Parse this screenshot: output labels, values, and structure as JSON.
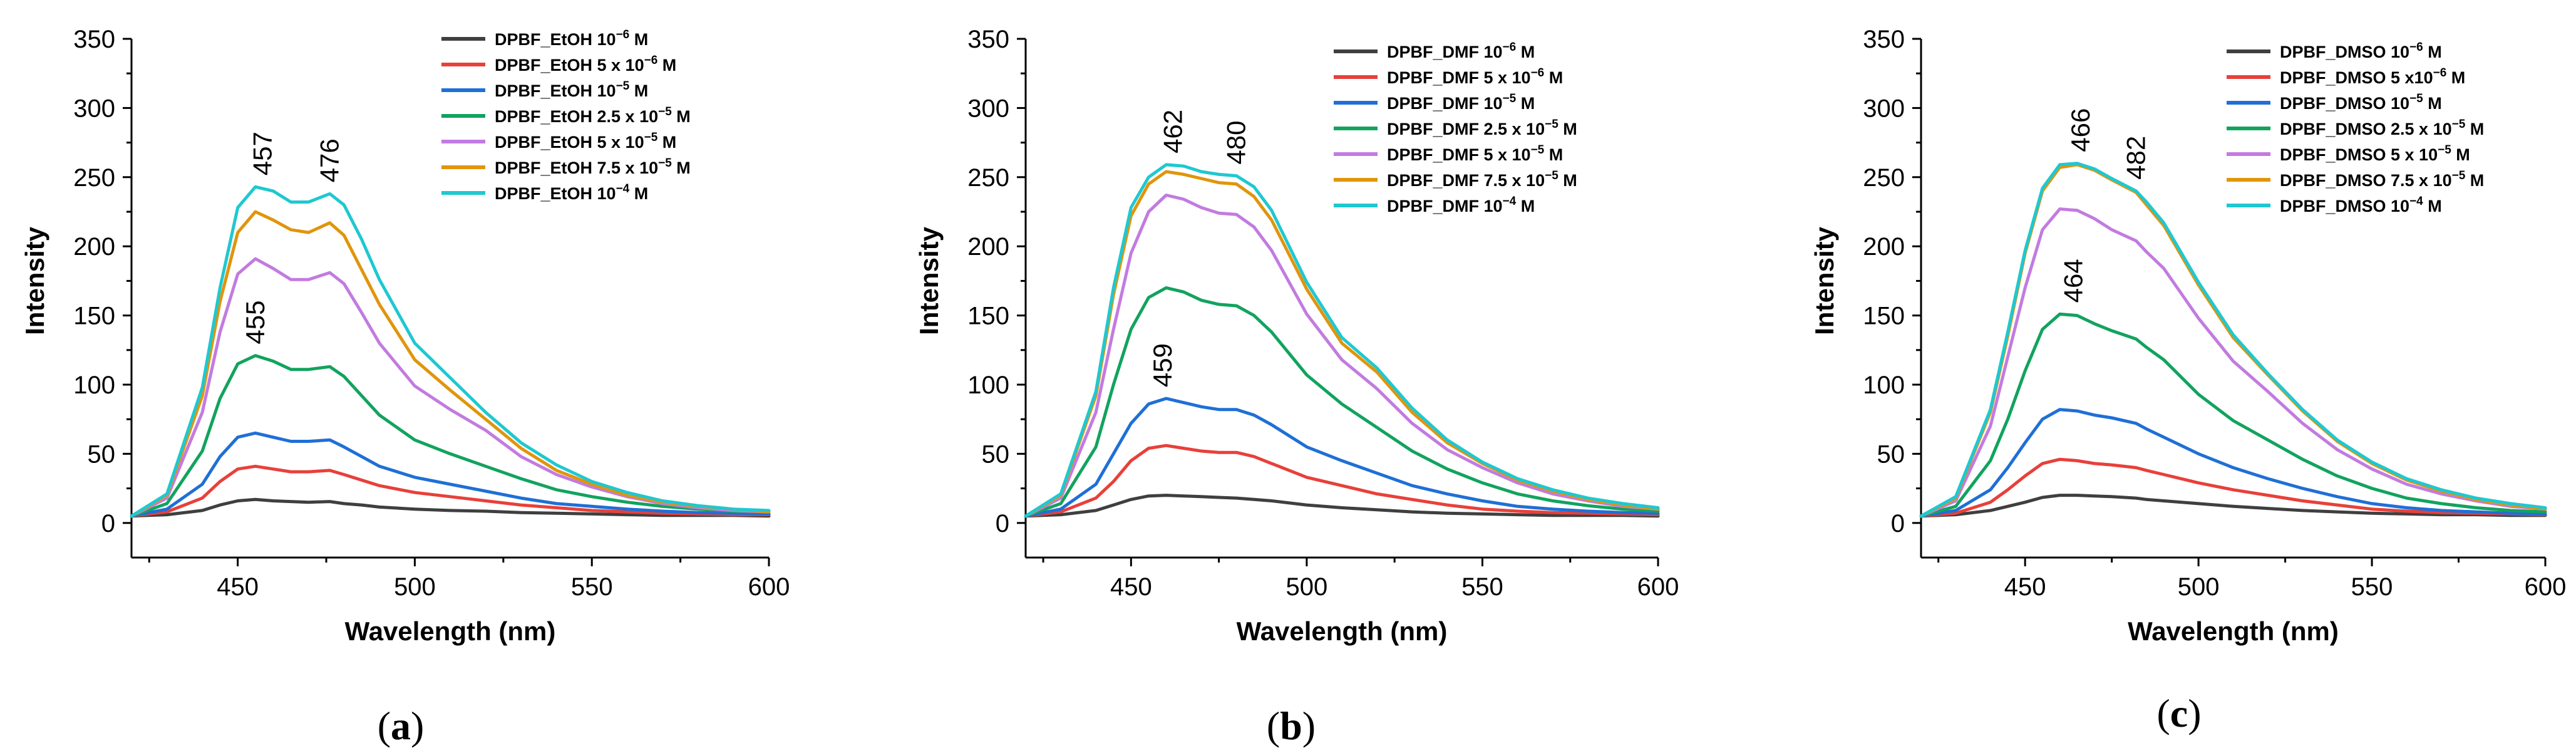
{
  "figure": {
    "legend_unit": "M",
    "sup_minus": "−6",
    "colors": [
      "#3f3f3f",
      "#e8403a",
      "#1f6fd6",
      "#12a35e",
      "#c27be0",
      "#e0950c",
      "#1fc8d0"
    ]
  },
  "chart_data": [
    {
      "type": "line",
      "panel_label": "a",
      "xlabel": "Wavelength (nm)",
      "ylabel": "Intensity",
      "xlim": [
        420,
        600
      ],
      "ylim": [
        -25,
        350
      ],
      "x_ticks": [
        450,
        500,
        550,
        600
      ],
      "x_minor_ticks": [
        425,
        475,
        525,
        575
      ],
      "y_ticks": [
        0,
        50,
        100,
        150,
        200,
        250,
        300,
        350
      ],
      "legend_position": "top-right",
      "legend": [
        {
          "prefix": "DPBF_EtOH ",
          "coef": "",
          "exp": "−6",
          "suffix": " M"
        },
        {
          "prefix": "DPBF_EtOH ",
          "coef": "5 x ",
          "exp": "−6",
          "suffix": " M"
        },
        {
          "prefix": "DPBF_EtOH ",
          "coef": "",
          "exp": "−5",
          "suffix": " M"
        },
        {
          "prefix": "DPBF_EtOH ",
          "coef": "2.5 x ",
          "exp": "−5",
          "suffix": " M"
        },
        {
          "prefix": "DPBF_EtOH ",
          "coef": "5 x ",
          "exp": "−5",
          "suffix": " M"
        },
        {
          "prefix": "DPBF_EtOH ",
          "coef": "7.5 x ",
          "exp": "−5",
          "suffix": " M"
        },
        {
          "prefix": "DPBF_EtOH ",
          "coef": "",
          "exp": "−4",
          "suffix": " M"
        }
      ],
      "x": [
        420,
        430,
        440,
        445,
        450,
        455,
        460,
        465,
        470,
        476,
        480,
        485,
        490,
        500,
        510,
        520,
        530,
        540,
        550,
        560,
        570,
        580,
        590,
        600
      ],
      "series": [
        {
          "name": "DPBF_EtOH 10^-6 M",
          "values": [
            5,
            6,
            9,
            13,
            16,
            17,
            16,
            15.5,
            15,
            15.5,
            14,
            13,
            11.5,
            10,
            9,
            8.5,
            7.5,
            7,
            6.5,
            6,
            5.5,
            5.5,
            5.5,
            5
          ]
        },
        {
          "name": "DPBF_EtOH 5 x 10^-6 M",
          "values": [
            5,
            8,
            18,
            30,
            39,
            41,
            39,
            37,
            37,
            38,
            35,
            31,
            27,
            22,
            19,
            16,
            13,
            11,
            9,
            8,
            7,
            6.5,
            6,
            6
          ]
        },
        {
          "name": "DPBF_EtOH 10^-5 M",
          "values": [
            5,
            10,
            28,
            48,
            62,
            65,
            62,
            59,
            59,
            60,
            55,
            48,
            41,
            33,
            28,
            23,
            18,
            14,
            12,
            10,
            8.5,
            7.5,
            7,
            6.5
          ]
        },
        {
          "name": "DPBF_EtOH 2.5 x 10^-5 M",
          "values": [
            5,
            14,
            52,
            90,
            115,
            121,
            117,
            111,
            111,
            113,
            106,
            92,
            78,
            60,
            50,
            41,
            32,
            24,
            19,
            15,
            12,
            10,
            8.5,
            8
          ]
        },
        {
          "name": "DPBF_EtOH 5 x 10^-5 M",
          "values": [
            5,
            18,
            80,
            138,
            180,
            191,
            184,
            176,
            176,
            181,
            173,
            152,
            130,
            99,
            82,
            67,
            48,
            35,
            26,
            19,
            14,
            11,
            9,
            8
          ]
        },
        {
          "name": "DPBF_EtOH 7.5 x 10^-5 M",
          "values": [
            5,
            20,
            92,
            160,
            210,
            225,
            219,
            212,
            210,
            217,
            208,
            183,
            158,
            118,
            96,
            75,
            54,
            38,
            28,
            20,
            15,
            12,
            10,
            8
          ]
        },
        {
          "name": "DPBF_EtOH 10^-4 M",
          "values": [
            5,
            21,
            98,
            170,
            228,
            243,
            240,
            232,
            232,
            238,
            230,
            205,
            176,
            130,
            105,
            80,
            58,
            42,
            30,
            22,
            16,
            12.5,
            10,
            9
          ]
        }
      ],
      "annotations": [
        {
          "text": "457",
          "x": 457,
          "y": 243
        },
        {
          "text": "476",
          "x": 476,
          "y": 238
        },
        {
          "text": "455",
          "x": 455,
          "y": 121
        }
      ],
      "caption": {
        "open": "(",
        "letter": "a",
        "close": ")"
      }
    },
    {
      "type": "line",
      "panel_label": "b",
      "xlabel": "Wavelength (nm)",
      "ylabel": "Intensity",
      "xlim": [
        420,
        600
      ],
      "ylim": [
        -25,
        350
      ],
      "x_ticks": [
        450,
        500,
        550,
        600
      ],
      "x_minor_ticks": [
        425,
        475,
        525,
        575
      ],
      "y_ticks": [
        0,
        50,
        100,
        150,
        200,
        250,
        300,
        350
      ],
      "legend_position": "top-right",
      "legend": [
        {
          "prefix": "DPBF_DMF ",
          "coef": "",
          "exp": "−6",
          "suffix": " M"
        },
        {
          "prefix": "DPBF_DMF ",
          "coef": "5 x ",
          "exp": "−6",
          "suffix": " M"
        },
        {
          "prefix": "DPBF_DMF ",
          "coef": "",
          "exp": "−5",
          "suffix": " M"
        },
        {
          "prefix": "DPBF_DMF ",
          "coef": "2.5 x ",
          "exp": "−5",
          "suffix": " M"
        },
        {
          "prefix": "DPBF_DMF ",
          "coef": "5 x ",
          "exp": "−5",
          "suffix": " M"
        },
        {
          "prefix": "DPBF_DMF ",
          "coef": "7.5 x ",
          "exp": "−5",
          "suffix": " M"
        },
        {
          "prefix": "DPBF_DMF ",
          "coef": "",
          "exp": "−4",
          "suffix": " M"
        }
      ],
      "x": [
        420,
        430,
        440,
        445,
        450,
        455,
        460,
        465,
        470,
        475,
        480,
        485,
        490,
        500,
        510,
        520,
        530,
        540,
        550,
        560,
        570,
        580,
        590,
        600
      ],
      "series": [
        {
          "name": "DPBF_DMF 10^-6 M",
          "values": [
            5,
            6,
            9,
            13,
            17,
            19.5,
            20,
            19.5,
            19,
            18.5,
            18,
            17,
            16,
            13,
            11,
            9.5,
            8,
            7,
            6.5,
            6,
            5.5,
            5.5,
            5.5,
            5
          ]
        },
        {
          "name": "DPBF_DMF 5 x 10^-6 M",
          "values": [
            5,
            8,
            18,
            30,
            45,
            54,
            56,
            54,
            52,
            51,
            51,
            48,
            43,
            33,
            27,
            21,
            17,
            13,
            10,
            8.5,
            7.5,
            7,
            6.5,
            6
          ]
        },
        {
          "name": "DPBF_DMF 10^-5 M",
          "values": [
            5,
            10,
            28,
            50,
            72,
            86,
            90,
            87,
            84,
            82,
            82,
            78,
            71,
            55,
            45,
            36,
            27,
            21,
            16,
            12,
            10,
            8.5,
            7.5,
            7
          ]
        },
        {
          "name": "DPBF_DMF 2.5 x 10^-5 M",
          "values": [
            5,
            14,
            55,
            100,
            140,
            163,
            170,
            167,
            161,
            158,
            157,
            150,
            138,
            107,
            86,
            69,
            52,
            39,
            29,
            21,
            16,
            12.5,
            10,
            8.5
          ]
        },
        {
          "name": "DPBF_DMF 5 x 10^-5 M",
          "values": [
            5,
            18,
            80,
            140,
            195,
            225,
            237,
            234,
            228,
            224,
            223,
            214,
            197,
            151,
            118,
            97,
            72,
            53,
            40,
            29,
            21,
            16,
            12,
            10
          ]
        },
        {
          "name": "DPBF_DMF 7.5 x 10^-5 M",
          "values": [
            5,
            20,
            92,
            165,
            222,
            245,
            254,
            252,
            249,
            246,
            245,
            236,
            219,
            169,
            130,
            109,
            80,
            58,
            43,
            31,
            23,
            17,
            13,
            10
          ]
        },
        {
          "name": "DPBF_DMF 10^-4 M",
          "values": [
            5,
            21,
            95,
            170,
            228,
            250,
            259,
            258,
            254,
            252,
            251,
            243,
            226,
            174,
            134,
            112,
            83,
            60,
            44,
            32,
            24,
            18,
            14,
            11
          ]
        }
      ],
      "annotations": [
        {
          "text": "462",
          "x": 462,
          "y": 259
        },
        {
          "text": "480",
          "x": 480,
          "y": 251
        },
        {
          "text": "459",
          "x": 459,
          "y": 90
        }
      ],
      "caption": {
        "open": "(",
        "letter": "b",
        "close": ")"
      }
    },
    {
      "type": "line",
      "panel_label": "c",
      "xlabel": "Wavelength (nm)",
      "ylabel": "Intensity",
      "xlim": [
        420,
        600
      ],
      "ylim": [
        -25,
        350
      ],
      "x_ticks": [
        450,
        500,
        550,
        600
      ],
      "x_minor_ticks": [
        425,
        475,
        525,
        575
      ],
      "y_ticks": [
        0,
        50,
        100,
        150,
        200,
        250,
        300,
        350
      ],
      "legend_position": "top-right",
      "legend": [
        {
          "prefix": "DPBF_DMSO ",
          "coef": "",
          "exp": "−6",
          "suffix": " M"
        },
        {
          "prefix": "DPBF_DMSO ",
          "coef": "5 x",
          "exp": "−6",
          "suffix": " M"
        },
        {
          "prefix": "DPBF_DMSO ",
          "coef": "",
          "exp": "−5",
          "suffix": " M"
        },
        {
          "prefix": "DPBF_DMSO ",
          "coef": "2.5 x ",
          "exp": "−5",
          "suffix": " M"
        },
        {
          "prefix": "DPBF_DMSO ",
          "coef": "5 x ",
          "exp": "−5",
          "suffix": " M"
        },
        {
          "prefix": "DPBF_DMSO ",
          "coef": "7.5 x ",
          "exp": "−5",
          "suffix": " M"
        },
        {
          "prefix": "DPBF_DMSO ",
          "coef": "",
          "exp": "−4",
          "suffix": " M"
        }
      ],
      "x": [
        420,
        430,
        440,
        445,
        450,
        455,
        460,
        465,
        470,
        475,
        482,
        485,
        490,
        500,
        510,
        520,
        530,
        540,
        550,
        560,
        570,
        580,
        590,
        600
      ],
      "series": [
        {
          "name": "DPBF_DMSO 10^-6 M",
          "values": [
            5,
            6,
            9,
            12,
            15,
            18.5,
            20,
            20,
            19.5,
            19,
            18,
            17,
            16,
            14,
            12,
            10.5,
            9,
            8,
            7,
            6.5,
            6,
            6,
            5.5,
            5.5
          ]
        },
        {
          "name": "DPBF_DMSO 5 x10^-6 M",
          "values": [
            5,
            7,
            15,
            24,
            34,
            43,
            46,
            45,
            43,
            42,
            40,
            38,
            35,
            29,
            24,
            20,
            16,
            13,
            10,
            8.5,
            7.5,
            7,
            6.5,
            6
          ]
        },
        {
          "name": "DPBF_DMSO 10^-5 M",
          "values": [
            5,
            9,
            24,
            40,
            58,
            75,
            82,
            81,
            78,
            76,
            72,
            68,
            62,
            50,
            40,
            32,
            25,
            19,
            14,
            11,
            9,
            8,
            7,
            6.5
          ]
        },
        {
          "name": "DPBF_DMSO 2.5 x 10^-5 M",
          "values": [
            5,
            12,
            45,
            75,
            110,
            140,
            151,
            150,
            144,
            139,
            133,
            127,
            118,
            93,
            74,
            60,
            46,
            34,
            25,
            18,
            14,
            11,
            9,
            8
          ]
        },
        {
          "name": "DPBF_DMSO 5 x 10^-5 M",
          "values": [
            5,
            16,
            70,
            120,
            170,
            212,
            227,
            226,
            220,
            212,
            204,
            196,
            184,
            148,
            117,
            95,
            72,
            53,
            39,
            28,
            21,
            16,
            12,
            10
          ]
        },
        {
          "name": "DPBF_DMSO 7.5 x 10^-5 M",
          "values": [
            5,
            18,
            80,
            135,
            195,
            240,
            257,
            259,
            255,
            248,
            239,
            230,
            215,
            172,
            134,
            107,
            81,
            59,
            43,
            31,
            23,
            17,
            13,
            10
          ]
        },
        {
          "name": "DPBF_DMSO 10^-4 M",
          "values": [
            5,
            19,
            82,
            138,
            197,
            242,
            259,
            260,
            256,
            249,
            240,
            232,
            217,
            174,
            136,
            108,
            82,
            60,
            44,
            32,
            24,
            18,
            14,
            11
          ]
        }
      ],
      "annotations": [
        {
          "text": "466",
          "x": 466,
          "y": 260
        },
        {
          "text": "482",
          "x": 482,
          "y": 240
        },
        {
          "text": "464",
          "x": 464,
          "y": 151
        }
      ],
      "caption": {
        "open": "(",
        "letter": "c",
        "close": ")"
      }
    }
  ]
}
